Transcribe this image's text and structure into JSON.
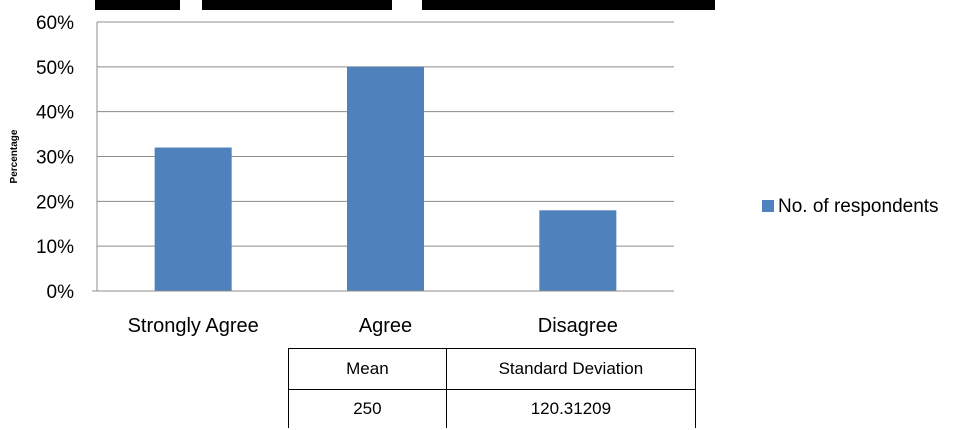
{
  "chart_data": {
    "type": "bar",
    "categories": [
      "Strongly Agree",
      "Agree",
      "Disagree"
    ],
    "series": [
      {
        "name": "No. of respondents",
        "values": [
          32,
          50,
          18
        ],
        "color": "#4F81BD"
      }
    ],
    "ylabel": "Percentage",
    "xlabel": "",
    "ylim": [
      0,
      60
    ],
    "yticks": [
      "0%",
      "10%",
      "20%",
      "30%",
      "40%",
      "50%",
      "60%"
    ],
    "grid": true,
    "legend": "right"
  },
  "stats_table": {
    "headers": [
      "Mean",
      "Standard Deviation"
    ],
    "row": [
      "250",
      "120.31209"
    ]
  }
}
